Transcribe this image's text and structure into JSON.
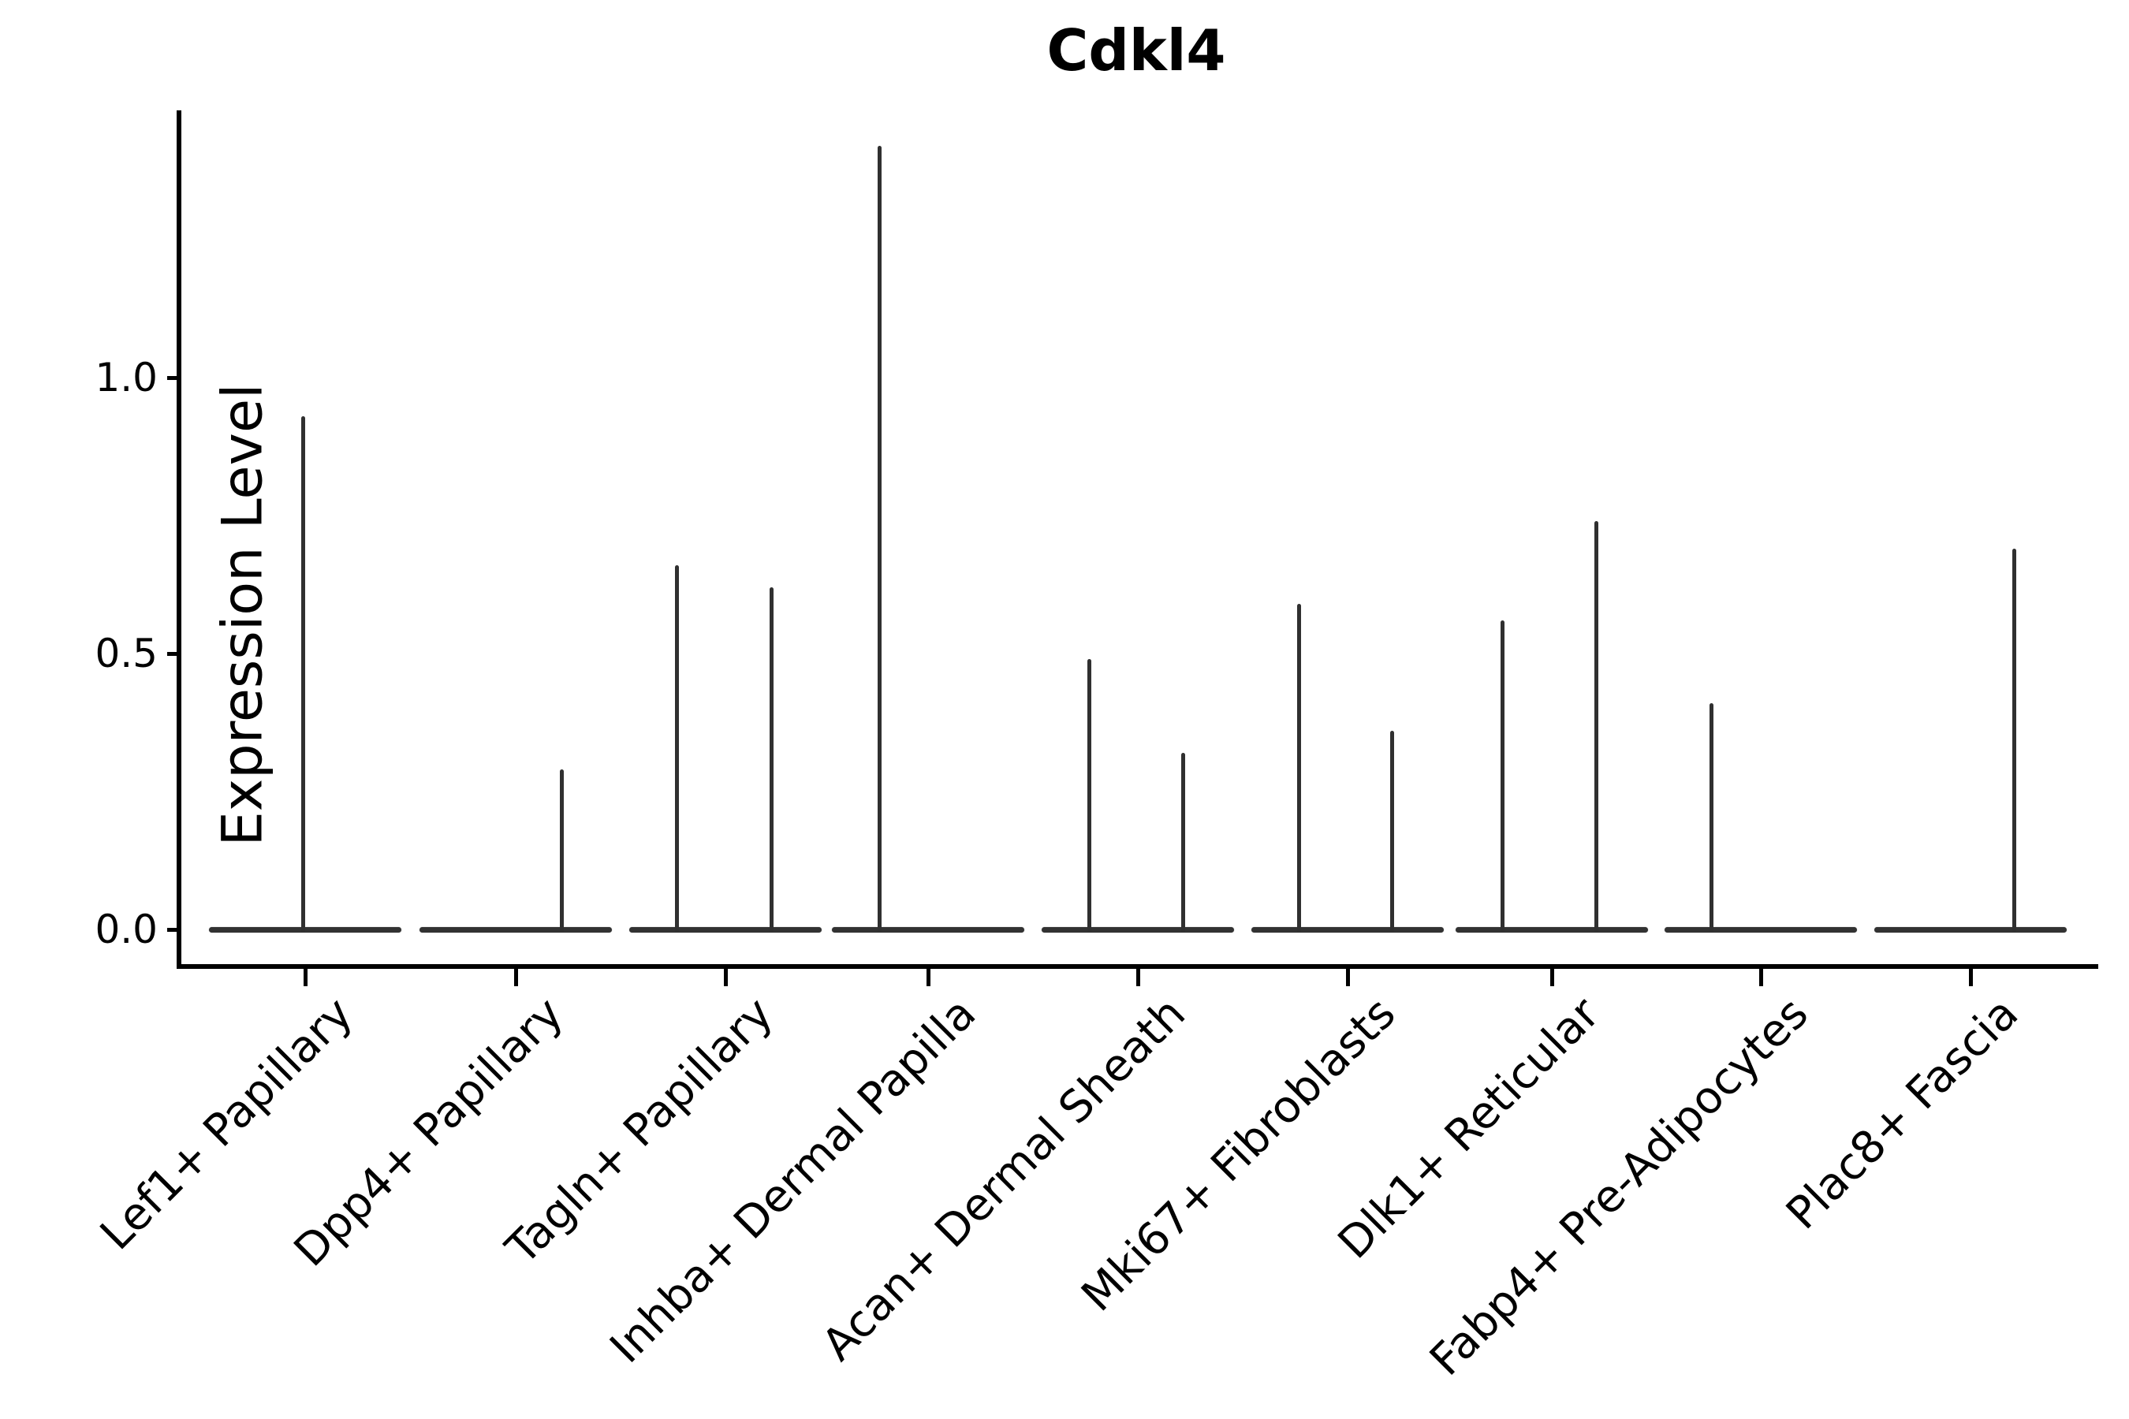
{
  "figure": {
    "title": "Cdkl4",
    "ylabel": "Expression Level"
  },
  "chart_data": {
    "type": "violin",
    "title": "Cdkl4",
    "xlabel": "",
    "ylabel": "Expression Level",
    "ylim": [
      0,
      1.48
    ],
    "grid": false,
    "legend": "none",
    "yticks": [
      {
        "label": "0.0",
        "value": 0.0
      },
      {
        "label": "0.5",
        "value": 0.5
      },
      {
        "label": "1.0",
        "value": 1.0
      }
    ],
    "categories": [
      "Lef1+ Papillary",
      "Dpp4+ Papillary",
      "Tagln+ Papillary",
      "Inhba+ Dermal Papilla",
      "Acan+ Dermal Sheath",
      "Mki67+ Fibroblasts",
      "Dlk1+ Reticular",
      "Fabp4+ Pre-Adipocytes",
      "Plac8+ Fascia"
    ],
    "series": [
      {
        "category": "Lef1+ Papillary",
        "baseline_value": 0.0,
        "spikes": [
          {
            "value": 0.93,
            "dx": -3
          }
        ]
      },
      {
        "category": "Dpp4+ Papillary",
        "baseline_value": 0.0,
        "spikes": [
          {
            "value": 0.29,
            "dx": 58
          }
        ]
      },
      {
        "category": "Tagln+ Papillary",
        "baseline_value": 0.0,
        "spikes": [
          {
            "value": 0.66,
            "dx": -62
          },
          {
            "value": 0.62,
            "dx": 58
          }
        ]
      },
      {
        "category": "Inhba+ Dermal Papilla",
        "baseline_value": 0.0,
        "spikes": [
          {
            "value": 1.42,
            "dx": -62
          }
        ]
      },
      {
        "category": "Acan+ Dermal Sheath",
        "baseline_value": 0.0,
        "spikes": [
          {
            "value": 0.49,
            "dx": -62
          },
          {
            "value": 0.32,
            "dx": 57
          }
        ]
      },
      {
        "category": "Mki67+ Fibroblasts",
        "baseline_value": 0.0,
        "spikes": [
          {
            "value": 0.59,
            "dx": -62
          },
          {
            "value": 0.36,
            "dx": 56
          }
        ]
      },
      {
        "category": "Dlk1+ Reticular",
        "baseline_value": 0.0,
        "spikes": [
          {
            "value": 0.56,
            "dx": -63
          },
          {
            "value": 0.74,
            "dx": 56
          }
        ]
      },
      {
        "category": "Fabp4+ Pre-Adipocytes",
        "baseline_value": 0.0,
        "spikes": [
          {
            "value": 0.41,
            "dx": -63
          }
        ]
      },
      {
        "category": "Plac8+ Fascia",
        "baseline_value": 0.0,
        "spikes": [
          {
            "value": 0.69,
            "dx": 55
          }
        ]
      }
    ],
    "colors": {
      "violin": "#303030",
      "axis": "#000000",
      "text": "#000000",
      "background": "#ffffff"
    }
  }
}
